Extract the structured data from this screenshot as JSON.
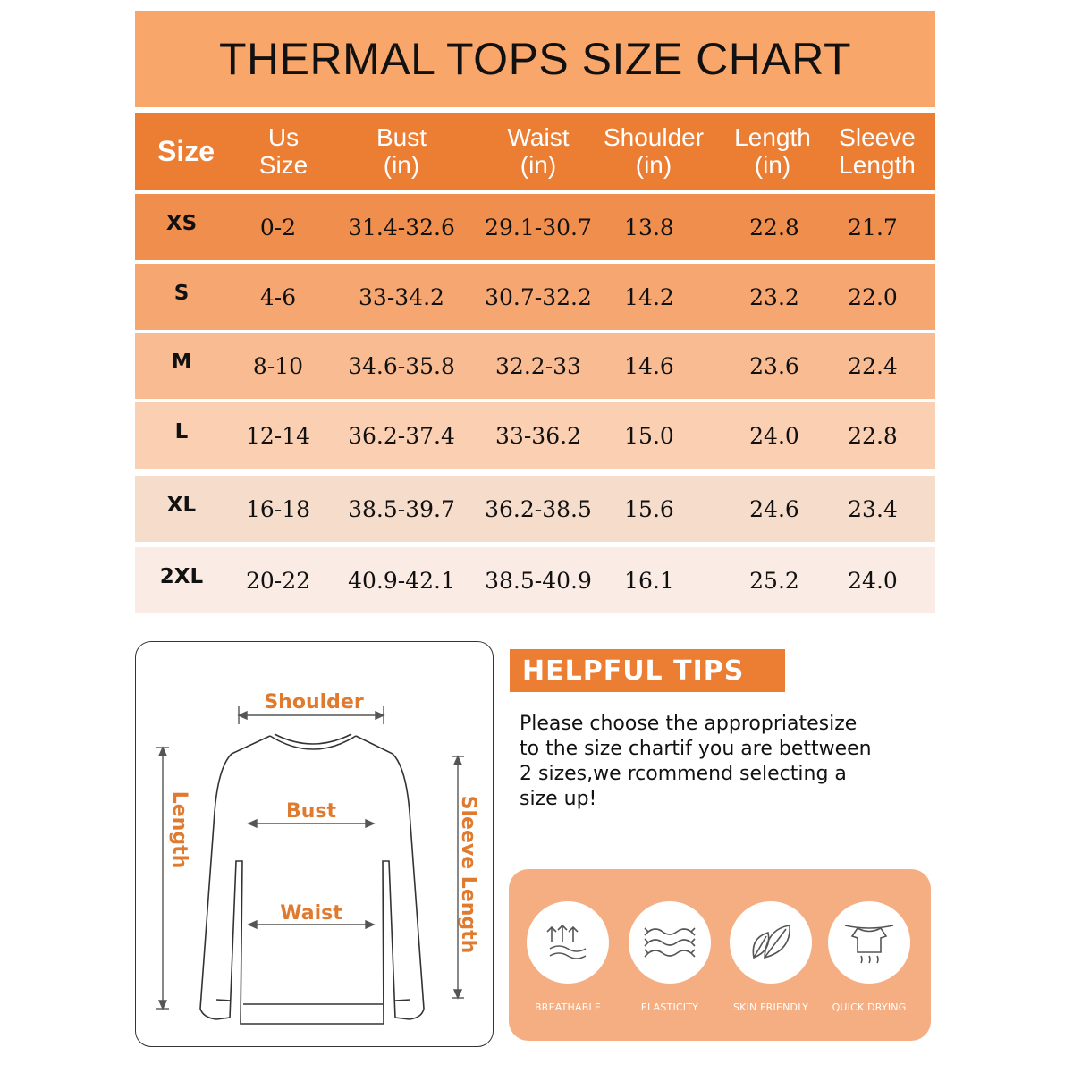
{
  "title": "THERMAL TOPS SIZE CHART",
  "table": {
    "headers": [
      "Size",
      "Us\nSize",
      "Bust\n(in)",
      "Waist\n(in)",
      "Shoulder\n(in)",
      "Length\n(in)",
      "Sleeve\nLength"
    ],
    "rows": [
      {
        "size": "XS",
        "us": "0-2",
        "bust": "31.4-32.6",
        "waist": "29.1-30.7",
        "shoulder": "13.8",
        "length": "22.8",
        "sleeve": "21.7",
        "color": "#f08f4d"
      },
      {
        "size": "S",
        "us": "4-6",
        "bust": "33-34.2",
        "waist": "30.7-32.2",
        "shoulder": "14.2",
        "length": "23.2",
        "sleeve": "22.0",
        "color": "#f6a670"
      },
      {
        "size": "M",
        "us": "8-10",
        "bust": "34.6-35.8",
        "waist": "32.2-33",
        "shoulder": "14.6",
        "length": "23.6",
        "sleeve": "22.4",
        "color": "#f8bb92"
      },
      {
        "size": "L",
        "us": "12-14",
        "bust": "36.2-37.4",
        "waist": "33-36.2",
        "shoulder": "15.0",
        "length": "24.0",
        "sleeve": "22.8",
        "color": "#fbcfb2"
      },
      {
        "size": "XL",
        "us": "16-18",
        "bust": "38.5-39.7",
        "waist": "36.2-38.5",
        "shoulder": "15.6",
        "length": "24.6",
        "sleeve": "23.4",
        "color": "#f6dccb"
      },
      {
        "size": "2XL",
        "us": "20-22",
        "bust": "40.9-42.1",
        "waist": "38.5-40.9",
        "shoulder": "16.1",
        "length": "25.2",
        "sleeve": "24.0",
        "color": "#faebe4"
      }
    ]
  },
  "diagram": {
    "shoulder": "Shoulder",
    "bust": "Bust",
    "waist": "Waist",
    "length": "Length",
    "sleeve_length": "Sleeve Length"
  },
  "tips": {
    "heading": "HELPFUL TIPS",
    "lines": [
      "Please choose the appropriatesize",
      "to the size chartif you are bettween",
      "2 sizes,we rcommend selecting a",
      "size up!"
    ]
  },
  "features": [
    {
      "label": "BREATHABLE",
      "icon": "breathable-icon"
    },
    {
      "label": "ELASTICITY",
      "icon": "elasticity-icon"
    },
    {
      "label": "SKIN FRIENDLY",
      "icon": "leaf-icon"
    },
    {
      "label": "QUICK DRYING",
      "icon": "quick-drying-icon"
    }
  ],
  "colors": {
    "title_bg": "#f9a66b",
    "header_bg": "#ec7e33",
    "accent": "#e07a2e",
    "features_bg": "#f5ae82"
  }
}
